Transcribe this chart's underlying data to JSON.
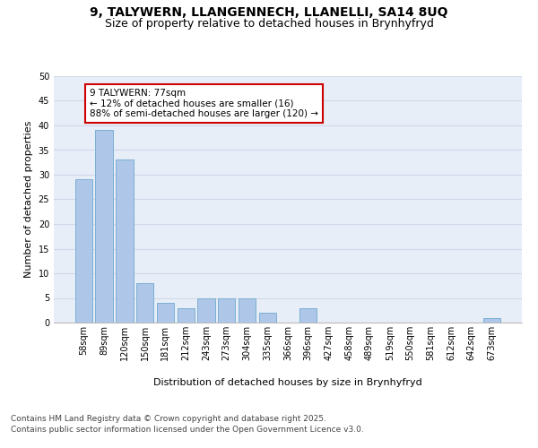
{
  "title_line1": "9, TALYWERN, LLANGENNECH, LLANELLI, SA14 8UQ",
  "title_line2": "Size of property relative to detached houses in Brynhyfryd",
  "xlabel": "Distribution of detached houses by size in Brynhyfryd",
  "ylabel": "Number of detached properties",
  "categories": [
    "58sqm",
    "89sqm",
    "120sqm",
    "150sqm",
    "181sqm",
    "212sqm",
    "243sqm",
    "273sqm",
    "304sqm",
    "335sqm",
    "366sqm",
    "396sqm",
    "427sqm",
    "458sqm",
    "489sqm",
    "519sqm",
    "550sqm",
    "581sqm",
    "612sqm",
    "642sqm",
    "673sqm"
  ],
  "values": [
    29,
    39,
    33,
    8,
    4,
    3,
    5,
    5,
    5,
    2,
    0,
    3,
    0,
    0,
    0,
    0,
    0,
    0,
    0,
    0,
    1
  ],
  "bar_color": "#aec6e8",
  "bar_edgecolor": "#7bafd4",
  "annotation_line1": "9 TALYWERN: 77sqm",
  "annotation_line2": "← 12% of detached houses are smaller (16)",
  "annotation_line3": "88% of semi-detached houses are larger (120) →",
  "annotation_box_color": "#ffffff",
  "annotation_box_edgecolor": "#cc0000",
  "ylim": [
    0,
    50
  ],
  "yticks": [
    0,
    5,
    10,
    15,
    20,
    25,
    30,
    35,
    40,
    45,
    50
  ],
  "grid_color": "#d0d8e8",
  "background_color": "#e8eef8",
  "footer_line1": "Contains HM Land Registry data © Crown copyright and database right 2025.",
  "footer_line2": "Contains public sector information licensed under the Open Government Licence v3.0.",
  "title_fontsize": 10,
  "subtitle_fontsize": 9,
  "axis_label_fontsize": 8,
  "tick_fontsize": 7,
  "annotation_fontsize": 7.5,
  "footer_fontsize": 6.5
}
